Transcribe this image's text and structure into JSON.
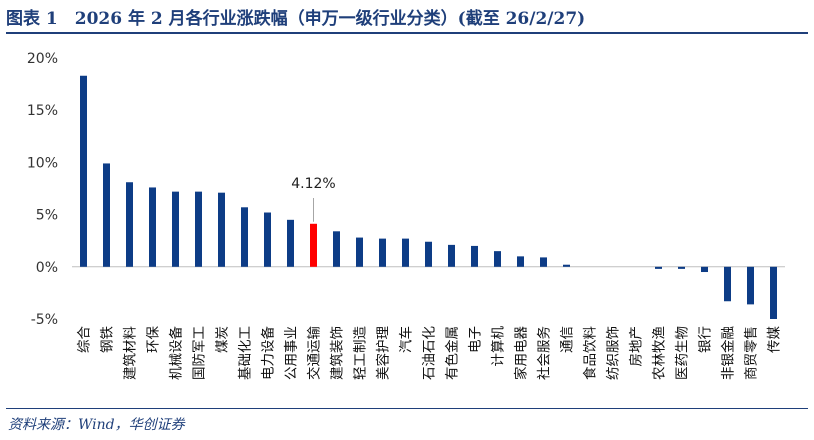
{
  "title": "图表 1　2026 年 2 月各行业涨跌幅（申万一级行业分类）(截至 26/2/27)",
  "source": "资料来源：Wind，华创证券",
  "colors": {
    "bar": "#0d3c86",
    "highlight": "#ff0000",
    "text": "#1f3f7a"
  },
  "chart_data": {
    "type": "bar",
    "categories": [
      "综合",
      "钢铁",
      "建筑材料",
      "环保",
      "机械设备",
      "国防军工",
      "煤炭",
      "基础化工",
      "电力设备",
      "公用事业",
      "交通运输",
      "建筑装饰",
      "轻工制造",
      "美容护理",
      "汽车",
      "石油石化",
      "有色金属",
      "电子",
      "计算机",
      "家用电器",
      "社会服务",
      "通信",
      "食品饮料",
      "纺织服饰",
      "房地产",
      "农林牧渔",
      "医药生物",
      "银行",
      "非银金融",
      "商贸零售",
      "传媒"
    ],
    "values": [
      18.3,
      9.9,
      8.1,
      7.6,
      7.2,
      7.2,
      7.1,
      5.7,
      5.2,
      4.5,
      4.12,
      3.4,
      2.8,
      2.7,
      2.7,
      2.4,
      2.1,
      2.0,
      1.5,
      1.0,
      0.9,
      0.2,
      0.0,
      0.0,
      0.0,
      -0.2,
      -0.2,
      -0.5,
      -3.3,
      -3.6,
      -5.0
    ],
    "highlight_index": 10,
    "data_label": "4.12%",
    "yticks": [
      "20%",
      "15%",
      "10%",
      "5%",
      "0%",
      "-5%"
    ],
    "ylim": [
      -5,
      20
    ],
    "grid": false,
    "legend": "none"
  }
}
